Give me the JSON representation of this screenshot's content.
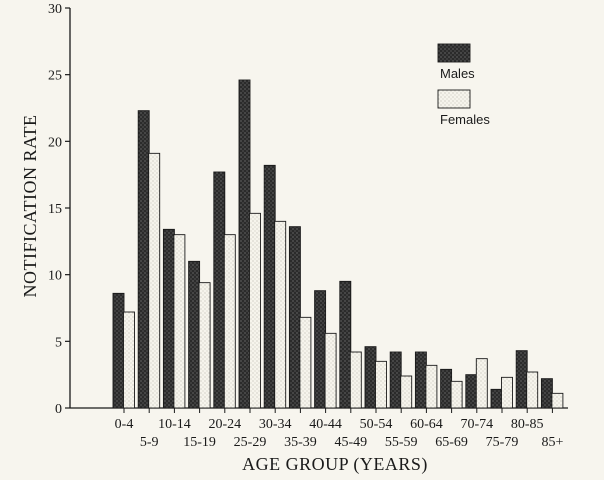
{
  "chart_data": {
    "type": "bar",
    "title": "",
    "xlabel": "AGE GROUP (YEARS)",
    "ylabel": "NOTIFICATION RATE",
    "ylim": [
      0,
      30
    ],
    "yticks": [
      "0",
      "5",
      "10",
      "15",
      "20",
      "25",
      "30"
    ],
    "grid": false,
    "legend_position": "top-right",
    "categories": [
      "0-4",
      "5-9",
      "10-14",
      "15-19",
      "20-24",
      "25-29",
      "30-34",
      "35-39",
      "40-44",
      "45-49",
      "50-54",
      "55-59",
      "60-64",
      "65-69",
      "70-74",
      "75-79",
      "80-85",
      "85+"
    ],
    "series": [
      {
        "name": "Males",
        "color": "#3a3a3a",
        "pattern": "dark-stipple",
        "values": [
          8.6,
          22.3,
          13.4,
          11.0,
          17.7,
          24.6,
          18.2,
          13.6,
          8.8,
          9.5,
          4.6,
          4.2,
          4.2,
          2.9,
          2.5,
          1.4,
          4.3,
          2.2
        ]
      },
      {
        "name": "Females",
        "color": "#f4f2ea",
        "pattern": "light-stipple",
        "values": [
          7.2,
          19.1,
          13.0,
          9.4,
          13.0,
          14.6,
          14.0,
          6.8,
          5.6,
          4.2,
          3.5,
          2.4,
          3.2,
          2.0,
          3.7,
          2.3,
          2.7,
          1.1
        ]
      }
    ]
  }
}
